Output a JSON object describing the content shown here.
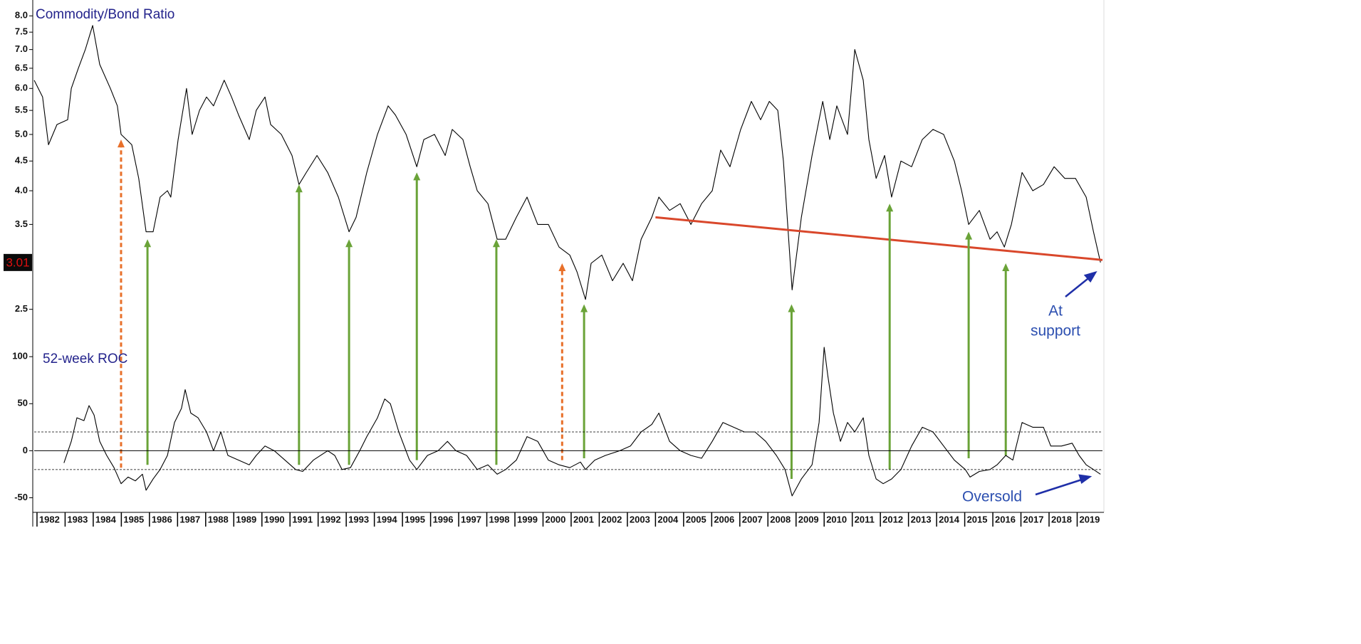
{
  "chart_data": [
    {
      "type": "line",
      "title": "Commodity/Bond Ratio",
      "log_scale": true,
      "ylim": [
        2.2,
        8.4
      ],
      "yticks": [
        {
          "value": 2.5,
          "label": "2.5"
        },
        3.5,
        {
          "value": 4,
          "label": "4.0"
        },
        4.5,
        {
          "value": 5,
          "label": "5.0"
        },
        5.5,
        {
          "value": 6,
          "label": "6.0"
        },
        6.5,
        {
          "value": 7,
          "label": "7.0"
        },
        7.5,
        {
          "value": 8,
          "label": "8.0"
        }
      ],
      "grid": false,
      "last_value": 3.01,
      "x": [
        1981.9,
        1982.2,
        1982.41,
        1982.71,
        1983.09,
        1983.22,
        1983.47,
        1983.72,
        1983.98,
        1984.23,
        1984.61,
        1984.86,
        1984.99,
        1985.37,
        1985.62,
        1985.88,
        1986.13,
        1986.38,
        1986.64,
        1986.76,
        1987.02,
        1987.32,
        1987.52,
        1987.78,
        1988.03,
        1988.28,
        1988.66,
        1988.92,
        1989.17,
        1989.55,
        1989.8,
        1990.11,
        1990.31,
        1990.69,
        1991.07,
        1991.32,
        1991.58,
        1991.96,
        1992.34,
        1992.72,
        1993.1,
        1993.35,
        1993.73,
        1994.11,
        1994.49,
        1994.75,
        1995.13,
        1995.51,
        1995.76,
        1996.14,
        1996.52,
        1996.77,
        1997.15,
        1997.41,
        1997.66,
        1998.04,
        1998.37,
        1998.67,
        1999.05,
        1999.43,
        1999.81,
        2000.19,
        2000.57,
        2000.95,
        2001.21,
        2001.51,
        2001.71,
        2002.09,
        2002.47,
        2002.85,
        2003.18,
        2003.49,
        2003.87,
        2004.12,
        2004.5,
        2004.88,
        2005.26,
        2005.64,
        2006.02,
        2006.32,
        2006.65,
        2007.03,
        2007.41,
        2007.74,
        2008.05,
        2008.35,
        2008.55,
        2008.86,
        2009.19,
        2009.57,
        2009.95,
        2010.2,
        2010.45,
        2010.83,
        2011.09,
        2011.39,
        2011.59,
        2011.85,
        2012.15,
        2012.4,
        2012.73,
        2013.11,
        2013.49,
        2013.87,
        2014.25,
        2014.63,
        2014.89,
        2015.14,
        2015.52,
        2015.9,
        2016.15,
        2016.41,
        2016.66,
        2017.04,
        2017.42,
        2017.8,
        2018.18,
        2018.56,
        2018.94,
        2019.32,
        2019.58,
        2019.83
      ],
      "series": [
        {
          "color": "#000000",
          "values": [
            6.2,
            5.8,
            4.8,
            5.2,
            5.3,
            6.0,
            6.5,
            7.0,
            7.7,
            6.6,
            6.0,
            5.6,
            5.0,
            4.8,
            4.2,
            3.4,
            3.4,
            3.9,
            4.0,
            3.9,
            4.9,
            6.0,
            5.0,
            5.5,
            5.8,
            5.6,
            6.2,
            5.8,
            5.4,
            4.9,
            5.5,
            5.8,
            5.2,
            5.0,
            4.6,
            4.1,
            4.3,
            4.6,
            4.3,
            3.9,
            3.4,
            3.6,
            4.3,
            5.0,
            5.6,
            5.4,
            5.0,
            4.4,
            4.9,
            5.0,
            4.6,
            5.1,
            4.9,
            4.4,
            4.0,
            3.8,
            3.3,
            3.3,
            3.6,
            3.9,
            3.5,
            3.5,
            3.2,
            3.1,
            2.9,
            2.6,
            3.0,
            3.1,
            2.8,
            3.0,
            2.8,
            3.3,
            3.6,
            3.9,
            3.7,
            3.8,
            3.5,
            3.8,
            4.0,
            4.7,
            4.4,
            5.1,
            5.7,
            5.3,
            5.7,
            5.5,
            4.5,
            2.7,
            3.6,
            4.6,
            5.7,
            4.9,
            5.6,
            5.0,
            7.0,
            6.2,
            4.9,
            4.2,
            4.6,
            3.9,
            4.5,
            4.4,
            4.9,
            5.1,
            5.0,
            4.5,
            4.0,
            3.5,
            3.7,
            3.3,
            3.4,
            3.2,
            3.5,
            4.3,
            4.0,
            4.1,
            4.4,
            4.2,
            4.2,
            3.9,
            3.4,
            3.01
          ]
        }
      ],
      "trendline": {
        "x": [
          2004.0,
          2019.9
        ],
        "values": [
          3.6,
          3.04
        ],
        "color": "#d9472b"
      },
      "arrows": [
        {
          "x": 1984.99,
          "from": -18,
          "to": 4.9,
          "color": "#e8702a",
          "style": "dashed"
        },
        {
          "x": 1985.93,
          "from": -15,
          "to": 3.3,
          "color": "#6aa338",
          "style": "solid"
        },
        {
          "x": 1991.32,
          "from": -15,
          "to": 4.1,
          "color": "#6aa338",
          "style": "solid"
        },
        {
          "x": 1993.1,
          "from": -15,
          "to": 3.3,
          "color": "#6aa338",
          "style": "solid"
        },
        {
          "x": 1995.51,
          "from": -10,
          "to": 4.3,
          "color": "#6aa338",
          "style": "solid"
        },
        {
          "x": 1998.34,
          "from": -15,
          "to": 3.3,
          "color": "#6aa338",
          "style": "solid"
        },
        {
          "x": 2000.68,
          "from": -10,
          "to": 3.0,
          "color": "#e8702a",
          "style": "dashed"
        },
        {
          "x": 2001.46,
          "from": -8,
          "to": 2.55,
          "color": "#6aa338",
          "style": "solid"
        },
        {
          "x": 2008.84,
          "from": -30,
          "to": 2.55,
          "color": "#6aa338",
          "style": "solid"
        },
        {
          "x": 2012.33,
          "from": -20,
          "to": 3.8,
          "color": "#6aa338",
          "style": "solid"
        },
        {
          "x": 2015.14,
          "from": -8,
          "to": 3.4,
          "color": "#6aa338",
          "style": "solid"
        },
        {
          "x": 2016.46,
          "from": -5,
          "to": 3.0,
          "color": "#6aa338",
          "style": "solid"
        }
      ],
      "annotations": [
        "At",
        "support",
        "Oversold"
      ]
    },
    {
      "type": "line",
      "title": "52-week ROC",
      "log_scale": false,
      "ylim": [
        -64,
        110
      ],
      "yticks": [
        -50,
        0,
        50,
        100
      ],
      "grid": false,
      "hlines": [
        {
          "value": 20,
          "style": "dashed"
        },
        {
          "value": 0,
          "style": "solid"
        },
        {
          "value": -20,
          "style": "dashed"
        }
      ],
      "xlim": [
        1981.9,
        2019.9
      ],
      "xticks": [
        1982,
        1983,
        1984,
        1985,
        1986,
        1987,
        1988,
        1989,
        1990,
        1991,
        1992,
        1993,
        1994,
        1995,
        1996,
        1997,
        1998,
        1999,
        2000,
        2001,
        2002,
        2003,
        2004,
        2005,
        2006,
        2007,
        2008,
        2009,
        2010,
        2011,
        2012,
        2013,
        2014,
        2015,
        2016,
        2017,
        2018,
        2019
      ],
      "x": [
        1982.96,
        1983.22,
        1983.42,
        1983.67,
        1983.85,
        1984.03,
        1984.23,
        1984.48,
        1984.74,
        1984.99,
        1985.24,
        1985.5,
        1985.75,
        1985.88,
        1986.13,
        1986.38,
        1986.64,
        1986.89,
        1987.14,
        1987.27,
        1987.47,
        1987.73,
        1988.03,
        1988.28,
        1988.54,
        1988.79,
        1989.17,
        1989.55,
        1989.8,
        1990.11,
        1990.44,
        1990.82,
        1991.2,
        1991.45,
        1991.83,
        1992.34,
        1992.59,
        1992.85,
        1993.15,
        1993.48,
        1993.73,
        1994.11,
        1994.37,
        1994.57,
        1994.87,
        1995.25,
        1995.51,
        1995.89,
        1996.27,
        1996.6,
        1996.9,
        1997.28,
        1997.66,
        1998.04,
        1998.37,
        1998.67,
        1999.05,
        1999.43,
        1999.81,
        2000.19,
        2000.57,
        2000.95,
        2001.33,
        2001.51,
        2001.84,
        2002.22,
        2002.73,
        2003.11,
        2003.49,
        2003.87,
        2004.12,
        2004.5,
        2004.88,
        2005.26,
        2005.64,
        2006.02,
        2006.4,
        2006.78,
        2007.16,
        2007.54,
        2007.92,
        2008.3,
        2008.61,
        2008.86,
        2009.19,
        2009.57,
        2009.82,
        2010.0,
        2010.13,
        2010.33,
        2010.58,
        2010.83,
        2011.09,
        2011.39,
        2011.59,
        2011.85,
        2012.1,
        2012.4,
        2012.73,
        2013.11,
        2013.49,
        2013.87,
        2014.25,
        2014.63,
        2015.02,
        2015.19,
        2015.52,
        2015.9,
        2016.15,
        2016.46,
        2016.71,
        2017.04,
        2017.42,
        2017.8,
        2018.06,
        2018.44,
        2018.82,
        2019.07,
        2019.32,
        2019.58,
        2019.83
      ],
      "series": [
        {
          "color": "#000000",
          "values": [
            -13,
            10,
            35,
            32,
            48,
            38,
            10,
            -5,
            -18,
            -35,
            -28,
            -32,
            -25,
            -42,
            -30,
            -20,
            -5,
            30,
            45,
            65,
            40,
            35,
            20,
            0,
            20,
            -5,
            -10,
            -15,
            -5,
            5,
            0,
            -10,
            -20,
            -22,
            -10,
            0,
            -5,
            -20,
            -18,
            0,
            15,
            35,
            55,
            50,
            20,
            -10,
            -20,
            -5,
            0,
            10,
            0,
            -5,
            -20,
            -15,
            -25,
            -20,
            -10,
            15,
            10,
            -10,
            -15,
            -18,
            -12,
            -20,
            -10,
            -5,
            0,
            5,
            20,
            28,
            40,
            10,
            0,
            -5,
            -8,
            10,
            30,
            25,
            20,
            20,
            10,
            -5,
            -20,
            -48,
            -30,
            -15,
            30,
            110,
            80,
            40,
            10,
            30,
            20,
            35,
            -5,
            -30,
            -35,
            -30,
            -20,
            5,
            25,
            20,
            5,
            -10,
            -20,
            -28,
            -22,
            -20,
            -15,
            -5,
            -10,
            30,
            25,
            25,
            5,
            5,
            8,
            -5,
            -15,
            -20,
            -25
          ]
        }
      ]
    }
  ]
}
